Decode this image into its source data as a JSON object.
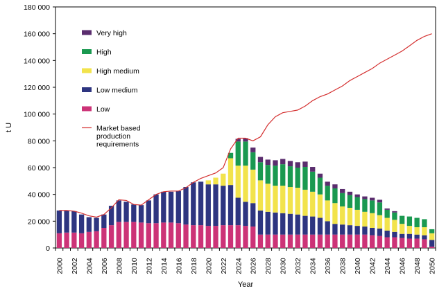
{
  "chart_data": {
    "type": "bar",
    "stacked": true,
    "xlabel": "Year",
    "ylabel": "t U",
    "ylim": [
      0,
      180000
    ],
    "yticks": [
      0,
      20000,
      40000,
      60000,
      80000,
      100000,
      120000,
      140000,
      160000,
      180000
    ],
    "ytick_labels": [
      "0",
      "20 000",
      "40 000",
      "60 000",
      "80 000",
      "100 000",
      "120 000",
      "140 000",
      "160 000",
      "180 000"
    ],
    "grid": false,
    "legend_position": "top-left",
    "categories": [
      "2000",
      "2001",
      "2002",
      "2003",
      "2004",
      "2005",
      "2006",
      "2007",
      "2008",
      "2009",
      "2010",
      "2011",
      "2012",
      "2013",
      "2014",
      "2015",
      "2016",
      "2017",
      "2018",
      "2019",
      "2020",
      "2021",
      "2022",
      "2023",
      "2024",
      "2025",
      "2026",
      "2027",
      "2028",
      "2029",
      "2030",
      "2031",
      "2032",
      "2033",
      "2034",
      "2035",
      "2036",
      "2037",
      "2038",
      "2039",
      "2040",
      "2041",
      "2042",
      "2043",
      "2044",
      "2045",
      "2046",
      "2047",
      "2048",
      "2049",
      "2050"
    ],
    "xtick_labels": [
      "2000",
      "2002",
      "2004",
      "2006",
      "2008",
      "2010",
      "2012",
      "2014",
      "2016",
      "2018",
      "2020",
      "2022",
      "2024",
      "2026",
      "2028",
      "2030",
      "2032",
      "2034",
      "2036",
      "2038",
      "2040",
      "2042",
      "2044",
      "2046",
      "2048",
      "2050"
    ],
    "series": [
      {
        "name": "Low",
        "color": "#cc3377",
        "values": [
          11000,
          11500,
          11500,
          11000,
          12000,
          12500,
          15000,
          17000,
          19500,
          19500,
          19500,
          19000,
          18500,
          18500,
          19000,
          19000,
          18500,
          17500,
          17000,
          17000,
          16500,
          16500,
          17000,
          17000,
          17000,
          16500,
          16000,
          10000,
          10000,
          10000,
          10000,
          10000,
          10000,
          10000,
          10000,
          10000,
          10000,
          10000,
          10000,
          10000,
          10000,
          10000,
          9500,
          9000,
          8000,
          8000,
          7500,
          7000,
          7000,
          6500,
          1000
        ]
      },
      {
        "name": "Low medium",
        "color": "#2e3580",
        "values": [
          17000,
          16500,
          16000,
          14000,
          11000,
          10000,
          10000,
          14500,
          16000,
          15000,
          13000,
          13000,
          17000,
          21500,
          23000,
          23000,
          24000,
          28000,
          32000,
          32500,
          31000,
          31000,
          29500,
          30000,
          20500,
          18000,
          17500,
          18000,
          17000,
          16500,
          16000,
          15500,
          15000,
          14000,
          13500,
          12500,
          10000,
          8000,
          7500,
          7000,
          6500,
          6000,
          5500,
          5500,
          5000,
          4000,
          3000,
          3500,
          3000,
          3000,
          5000
        ]
      },
      {
        "name": "High medium",
        "color": "#f2e34c",
        "values": [
          0,
          0,
          0,
          0,
          0,
          0,
          0,
          0,
          0,
          0,
          0,
          0,
          0,
          0,
          0,
          0,
          0,
          0,
          0,
          0,
          3000,
          5000,
          9000,
          20000,
          24000,
          27000,
          25000,
          22500,
          21000,
          20000,
          20500,
          20000,
          20000,
          19500,
          18500,
          17500,
          15500,
          15500,
          13500,
          13000,
          12000,
          11000,
          11000,
          10000,
          9500,
          9000,
          7500,
          6000,
          5500,
          6000,
          5000
        ]
      },
      {
        "name": "High",
        "color": "#1a9950",
        "values": [
          0,
          0,
          0,
          0,
          0,
          0,
          0,
          0,
          0,
          0,
          0,
          0,
          0,
          0,
          0,
          0,
          0,
          0,
          0,
          0,
          0,
          0,
          0,
          4000,
          18000,
          18000,
          13000,
          13500,
          14000,
          15000,
          16000,
          15500,
          15000,
          17000,
          15000,
          12500,
          11000,
          11000,
          10000,
          9500,
          9500,
          9500,
          9500,
          9500,
          6000,
          5500,
          6000,
          7000,
          7000,
          6000,
          3000
        ]
      },
      {
        "name": "Very high",
        "color": "#5a2d6e",
        "values": [
          0,
          0,
          0,
          0,
          0,
          0,
          0,
          0,
          0,
          0,
          0,
          0,
          0,
          0,
          0,
          0,
          0,
          0,
          0,
          0,
          0,
          0,
          0,
          0,
          2000,
          2500,
          3500,
          4000,
          4000,
          4000,
          4000,
          4000,
          4000,
          4000,
          3500,
          3000,
          3000,
          3000,
          3000,
          2500,
          2000,
          2000,
          2000,
          2000,
          1000,
          1000,
          0,
          0,
          0,
          0,
          0
        ]
      }
    ],
    "line": {
      "name": "Market based production requirements",
      "color": "#d42f2f",
      "values": [
        28000,
        28000,
        27500,
        26000,
        24000,
        23000,
        25000,
        30000,
        36000,
        35500,
        32500,
        32000,
        36000,
        40000,
        42000,
        42500,
        42500,
        45000,
        49000,
        52000,
        54000,
        56000,
        60000,
        74000,
        82000,
        82000,
        80000,
        83000,
        92000,
        98000,
        101000,
        102000,
        103000,
        106000,
        110000,
        113000,
        115000,
        118000,
        121000,
        125000,
        128000,
        131000,
        134000,
        138000,
        141000,
        144000,
        147000,
        151000,
        155000,
        158000,
        160000
      ]
    },
    "legend": [
      {
        "key": "very_high",
        "label": "Very high",
        "color": "#5a2d6e"
      },
      {
        "key": "high",
        "label": "High",
        "color": "#1a9950"
      },
      {
        "key": "high_medium",
        "label": "High medium",
        "color": "#f2e34c"
      },
      {
        "key": "low_medium",
        "label": "Low medium",
        "color": "#2e3580"
      },
      {
        "key": "low",
        "label": "Low",
        "color": "#cc3377"
      },
      {
        "key": "market",
        "label_lines": [
          "Market based",
          "production",
          "requirements"
        ],
        "color": "#d42f2f"
      }
    ]
  }
}
